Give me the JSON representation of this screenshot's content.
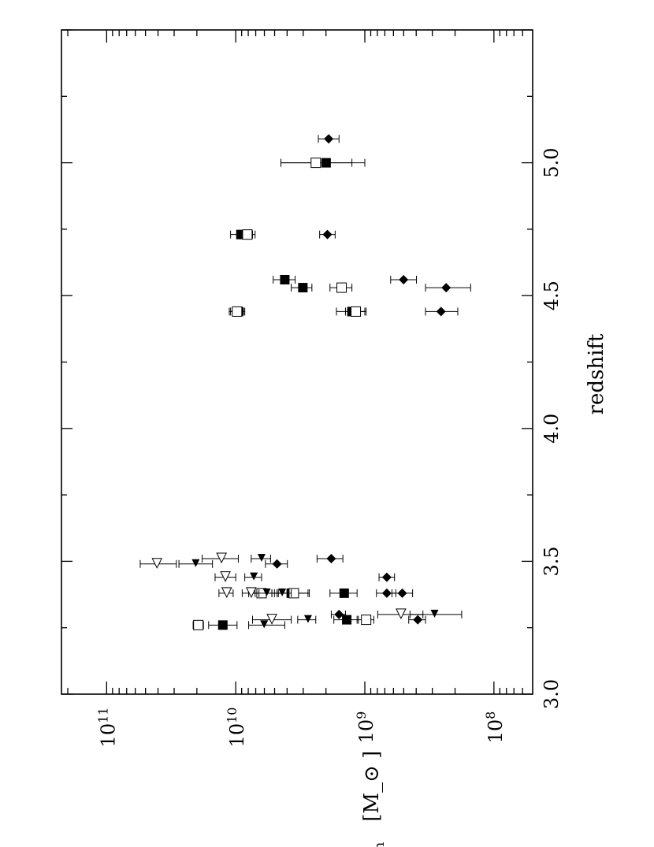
{
  "chart_data": {
    "type": "scatter",
    "orientation": "rotated-90-ccw",
    "xlabel": "redshift",
    "ylabel": "M_bh  [M_⊙ ]",
    "xlim": [
      3.0,
      5.5
    ],
    "ylim_log10": [
      7.7,
      11.35
    ],
    "y_scale": "log",
    "x_ticks": [
      "3.0",
      "3.5",
      "4.0",
      "4.5",
      "5.0"
    ],
    "y_ticks": [
      {
        "base": "10",
        "exp": "8"
      },
      {
        "base": "10",
        "exp": "9"
      },
      {
        "base": "10",
        "exp": "10"
      },
      {
        "base": "10",
        "exp": "11"
      }
    ],
    "grid": false,
    "series": [
      {
        "marker": "filled-square",
        "points": [
          {
            "x": 3.26,
            "logy": 10.1,
            "elo": 9.99,
            "ehi": 10.21
          },
          {
            "x": 3.28,
            "logy": 9.14,
            "elo": 9.05,
            "ehi": 9.24
          },
          {
            "x": 3.38,
            "logy": 9.57,
            "elo": 9.44,
            "ehi": 9.7
          },
          {
            "x": 3.38,
            "logy": 9.16,
            "elo": 9.06,
            "ehi": 9.27
          },
          {
            "x": 4.44,
            "logy": 9.98,
            "elo": 9.93,
            "ehi": 10.04
          },
          {
            "x": 4.44,
            "logy": 9.1,
            "elo": 9.0,
            "ehi": 9.22
          },
          {
            "x": 4.53,
            "logy": 9.48,
            "elo": 9.41,
            "ehi": 9.57
          },
          {
            "x": 4.56,
            "logy": 9.62,
            "elo": 9.54,
            "ehi": 9.71
          },
          {
            "x": 4.73,
            "logy": 9.96,
            "elo": 9.87,
            "ehi": 10.04
          },
          {
            "x": 5.0,
            "logy": 9.3,
            "elo": 9.0,
            "ehi": 9.65
          }
        ]
      },
      {
        "marker": "open-square",
        "points": [
          {
            "x": 3.26,
            "logy": 10.29,
            "elo": 10.25,
            "ehi": 10.33
          },
          {
            "x": 3.28,
            "logy": 8.99,
            "elo": 8.93,
            "ehi": 9.06
          },
          {
            "x": 3.38,
            "logy": 9.8,
            "elo": 9.72,
            "ehi": 9.9
          },
          {
            "x": 3.38,
            "logy": 9.55,
            "elo": 9.43,
            "ehi": 9.67
          },
          {
            "x": 4.44,
            "logy": 9.99,
            "elo": 9.94,
            "ehi": 10.05
          },
          {
            "x": 4.44,
            "logy": 9.07,
            "elo": 8.99,
            "ehi": 9.15
          },
          {
            "x": 4.53,
            "logy": 9.18,
            "elo": 9.1,
            "ehi": 9.27
          },
          {
            "x": 4.73,
            "logy": 9.91,
            "elo": 9.85,
            "ehi": 9.98
          },
          {
            "x": 5.0,
            "logy": 9.38,
            "elo": 9.1,
            "ehi": 9.65
          }
        ]
      },
      {
        "marker": "filled-diamond",
        "points": [
          {
            "x": 3.28,
            "logy": 8.59,
            "elo": 8.53,
            "ehi": 8.66
          },
          {
            "x": 3.3,
            "logy": 9.2,
            "elo": 9.15,
            "ehi": 9.26
          },
          {
            "x": 3.38,
            "logy": 8.71,
            "elo": 8.63,
            "ehi": 8.79
          },
          {
            "x": 3.38,
            "logy": 8.83,
            "elo": 8.76,
            "ehi": 8.91
          },
          {
            "x": 3.44,
            "logy": 8.83,
            "elo": 8.77,
            "ehi": 8.89
          },
          {
            "x": 3.49,
            "logy": 9.68,
            "elo": 9.6,
            "ehi": 9.77
          },
          {
            "x": 3.51,
            "logy": 9.26,
            "elo": 9.17,
            "ehi": 9.37
          },
          {
            "x": 4.44,
            "logy": 8.41,
            "elo": 8.28,
            "ehi": 8.53
          },
          {
            "x": 4.53,
            "logy": 8.37,
            "elo": 8.18,
            "ehi": 8.53
          },
          {
            "x": 4.56,
            "logy": 8.7,
            "elo": 8.6,
            "ehi": 8.8
          },
          {
            "x": 4.73,
            "logy": 9.29,
            "elo": 9.23,
            "ehi": 9.35
          },
          {
            "x": 5.09,
            "logy": 9.28,
            "elo": 9.2,
            "ehi": 9.36
          }
        ]
      },
      {
        "marker": "filled-triangle-left",
        "points": [
          {
            "x": 3.26,
            "logy": 9.78,
            "elo": 9.62,
            "ehi": 9.9
          },
          {
            "x": 3.28,
            "logy": 9.44,
            "elo": 9.38,
            "ehi": 9.52
          },
          {
            "x": 3.3,
            "logy": 8.46,
            "elo": 8.25,
            "ehi": 8.65
          },
          {
            "x": 3.38,
            "logy": 9.76,
            "elo": 9.68,
            "ehi": 9.85
          },
          {
            "x": 3.38,
            "logy": 9.64,
            "elo": 9.57,
            "ehi": 9.72
          },
          {
            "x": 3.44,
            "logy": 9.86,
            "elo": 9.8,
            "ehi": 9.93
          },
          {
            "x": 3.49,
            "logy": 10.31,
            "elo": 10.18,
            "ehi": 10.44
          },
          {
            "x": 3.51,
            "logy": 9.8,
            "elo": 9.73,
            "ehi": 9.88
          }
        ]
      },
      {
        "marker": "open-triangle-left",
        "points": [
          {
            "x": 3.28,
            "logy": 9.72,
            "elo": 9.57,
            "ehi": 9.87
          },
          {
            "x": 3.3,
            "logy": 8.72,
            "elo": 8.55,
            "ehi": 8.9
          },
          {
            "x": 3.38,
            "logy": 10.07,
            "elo": 10.02,
            "ehi": 10.13
          },
          {
            "x": 3.38,
            "logy": 9.88,
            "elo": 9.82,
            "ehi": 9.95
          },
          {
            "x": 3.44,
            "logy": 10.08,
            "elo": 10.0,
            "ehi": 10.16
          },
          {
            "x": 3.49,
            "logy": 10.61,
            "elo": 10.46,
            "ehi": 10.74
          },
          {
            "x": 3.51,
            "logy": 10.11,
            "elo": 9.98,
            "ehi": 10.26
          }
        ]
      }
    ]
  }
}
